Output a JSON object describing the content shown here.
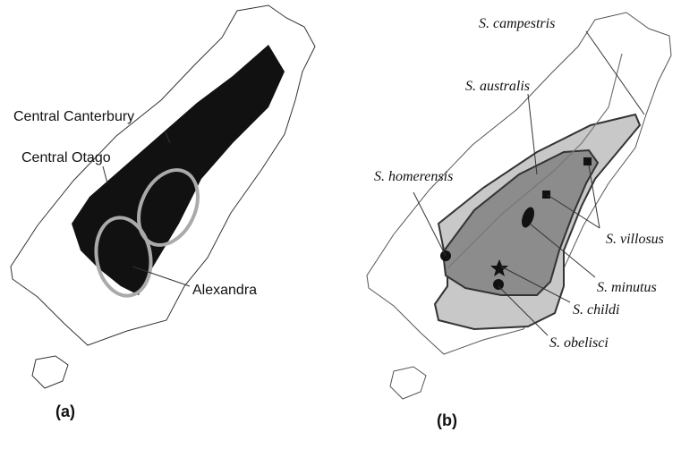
{
  "panels": [
    {
      "label": "(a)",
      "annotations": [
        "Central Canterbury",
        "Central Otago",
        "Alexandra"
      ]
    },
    {
      "label": "(b)",
      "species": [
        "S. campestris",
        "S. australis",
        "S. homerensis",
        "S. villosus",
        "S. minutus",
        "S. childi",
        "S. obelisci"
      ]
    }
  ]
}
